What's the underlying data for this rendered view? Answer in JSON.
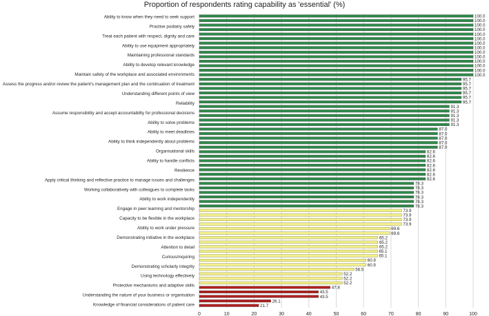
{
  "chart_data": {
    "type": "bar",
    "orientation": "horizontal",
    "title": "Proportion of respondents rating capability as 'essential' (%)",
    "xlabel": "",
    "ylabel": "",
    "xlim": [
      0,
      100
    ],
    "x_ticks": [
      0,
      10,
      20,
      30,
      40,
      50,
      60,
      70,
      80,
      90,
      100
    ],
    "grid": true,
    "legend": false,
    "bar_colors": {
      "high": "#2e8b4a",
      "medium": "#f4f08c",
      "low": "#b0201f"
    },
    "labeled_categories": [
      "Ability to know when they need to seek support",
      "Practise podiatry safely",
      "Treat each patient with respect, dignity and care",
      "Ability to use equipment appropriately",
      "Maintaining professional standards",
      "Ability to develop relevant knowledge",
      "Maintain safety of the workplace and associated environments",
      "Assess the progress and/or review the patient's management plan and the continuation of treatment",
      "Understanding different points of view",
      "Reliability",
      "Assume responsibility and accept accountability for professional decisions",
      "Ability to solve problems",
      "Ability to meet deadlines",
      "Ability to think independently about problems",
      "Organisational skills",
      "Ability to handle conflicts",
      "Resilience",
      "Apply critical thinking and reflective practice to manage issues and challenges",
      "Working collaboratively with colleagues to complete tasks",
      "Ability to work independently",
      "Engage in peer learning and mentorship",
      "Capacity to be flexible in the workplace",
      "Ability to work under pressure",
      "Demonstrating initiative in the workplace",
      "Attention to detail",
      "Curious/inquiring",
      "Demonstrating scholarly integrity",
      "Using technology effectively",
      "Protective mechanisms and adaptive skills",
      "Understanding the nature of your business or organisation",
      "Knowledge of financial considerations of patient care"
    ],
    "values": [
      100.0,
      100.0,
      100.0,
      100.0,
      100.0,
      100.0,
      100.0,
      100.0,
      100.0,
      100.0,
      100.0,
      100.0,
      100.0,
      100.0,
      95.7,
      95.7,
      95.7,
      95.7,
      95.7,
      95.7,
      91.3,
      91.3,
      91.3,
      91.3,
      91.3,
      87.0,
      87.0,
      87.0,
      87.0,
      87.0,
      82.6,
      82.6,
      82.6,
      82.6,
      82.6,
      82.6,
      82.6,
      78.3,
      78.3,
      78.3,
      78.3,
      78.3,
      78.3,
      73.9,
      73.9,
      73.9,
      73.9,
      69.6,
      69.6,
      65.2,
      65.2,
      65.2,
      65.1,
      65.1,
      60.9,
      60.9,
      56.5,
      52.2,
      52.2,
      52.2,
      47.8,
      43.5,
      43.5,
      26.1,
      21.7
    ],
    "value_labels": [
      "100.0",
      "100.0",
      "100.0",
      "100.0",
      "100.0",
      "100.0",
      "100.0",
      "100.0",
      "100.0",
      "100.0",
      "100.0",
      "100.0",
      "100.0",
      "100.0",
      "95.7",
      "95.7",
      "95.7",
      "95.7",
      "95.7",
      "95.7",
      "91.3",
      "91.3",
      "91.3",
      "91.3",
      "91.3",
      "87.0",
      "87.0",
      "87.0",
      "87.0",
      "87.0",
      "82.6",
      "82.6",
      "82.6",
      "82.6",
      "82.6",
      "82.6",
      "82.6",
      "78.3",
      "78.3",
      "78.3",
      "78.3",
      "78.3",
      "78.3",
      "73.9",
      "73.9",
      "73.9",
      "73.9",
      "69.6",
      "69.6",
      "65.2",
      "65.2",
      "65.2",
      "65.1",
      "65.1",
      "60.9",
      "60.9",
      "56.5",
      "52.2",
      "52.2",
      "52.2",
      "47.8",
      "43.5",
      "43.5",
      "26.1",
      "21.7"
    ],
    "value_tiers": [
      "high",
      "high",
      "high",
      "high",
      "high",
      "high",
      "high",
      "high",
      "high",
      "high",
      "high",
      "high",
      "high",
      "high",
      "high",
      "high",
      "high",
      "high",
      "high",
      "high",
      "high",
      "high",
      "high",
      "high",
      "high",
      "high",
      "high",
      "high",
      "high",
      "high",
      "high",
      "high",
      "high",
      "high",
      "high",
      "high",
      "high",
      "high",
      "high",
      "high",
      "high",
      "high",
      "high",
      "medium",
      "medium",
      "medium",
      "medium",
      "medium",
      "medium",
      "medium",
      "medium",
      "medium",
      "medium",
      "medium",
      "medium",
      "medium",
      "medium",
      "medium",
      "medium",
      "medium",
      "low",
      "low",
      "low",
      "low",
      "low"
    ]
  }
}
